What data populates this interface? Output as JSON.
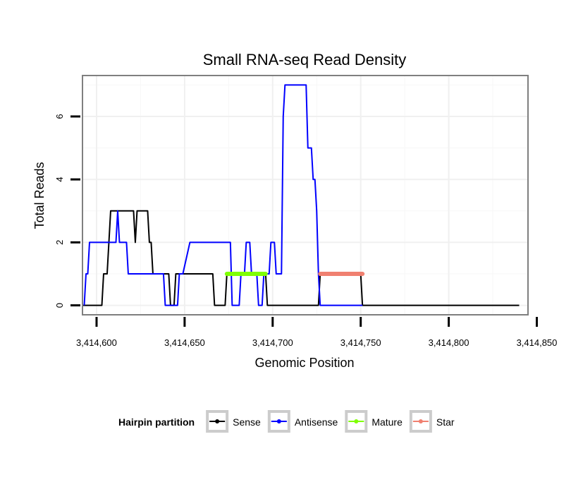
{
  "chart_data": {
    "type": "line",
    "title": "Small RNA-seq Read Density",
    "xlabel": "Genomic Position",
    "ylabel": "Total Reads",
    "xlim": [
      3414592,
      3414845
    ],
    "ylim": [
      -0.3,
      7.3
    ],
    "x_ticks": [
      {
        "value": 3414600,
        "label": "3,414,600"
      },
      {
        "value": 3414650,
        "label": "3,414,650"
      },
      {
        "value": 3414700,
        "label": "3,414,700"
      },
      {
        "value": 3414750,
        "label": "3,414,750"
      },
      {
        "value": 3414800,
        "label": "3,414,800"
      },
      {
        "value": 3414850,
        "label": "3,414,850"
      }
    ],
    "y_ticks": [
      {
        "value": 0,
        "label": "0"
      },
      {
        "value": 2,
        "label": "2"
      },
      {
        "value": 4,
        "label": "4"
      },
      {
        "value": 6,
        "label": "6"
      }
    ],
    "grid": true,
    "legend_position": "bottom",
    "legend_title": "Hairpin partition",
    "series": [
      {
        "name": "Sense",
        "color": "#000000",
        "points": [
          [
            3414592,
            0
          ],
          [
            3414603,
            0
          ],
          [
            3414604,
            1
          ],
          [
            3414606,
            1
          ],
          [
            3414608,
            3
          ],
          [
            3414615,
            3
          ],
          [
            3414621,
            3
          ],
          [
            3414622,
            2
          ],
          [
            3414623,
            3
          ],
          [
            3414629,
            3
          ],
          [
            3414630,
            2
          ],
          [
            3414631,
            2
          ],
          [
            3414632,
            1
          ],
          [
            3414641,
            1
          ],
          [
            3414642,
            0
          ],
          [
            3414644,
            0
          ],
          [
            3414645,
            1
          ],
          [
            3414650,
            1
          ],
          [
            3414666,
            1
          ],
          [
            3414667,
            0
          ],
          [
            3414673,
            0
          ],
          [
            3414674,
            1
          ],
          [
            3414690,
            1
          ],
          [
            3414696,
            1
          ],
          [
            3414697,
            0
          ],
          [
            3414726,
            0
          ],
          [
            3414727,
            1
          ],
          [
            3414750,
            1
          ],
          [
            3414751,
            0
          ],
          [
            3414840,
            0
          ]
        ]
      },
      {
        "name": "Antisense",
        "color": "#0000ff",
        "points": [
          [
            3414593,
            0
          ],
          [
            3414594,
            1
          ],
          [
            3414595,
            1
          ],
          [
            3414596,
            2
          ],
          [
            3414611,
            2
          ],
          [
            3414612,
            3
          ],
          [
            3414613,
            2
          ],
          [
            3414617,
            2
          ],
          [
            3414618,
            1
          ],
          [
            3414631,
            1
          ],
          [
            3414638,
            1
          ],
          [
            3414639,
            0
          ],
          [
            3414646,
            0
          ],
          [
            3414647,
            1
          ],
          [
            3414649,
            1
          ],
          [
            3414653,
            2
          ],
          [
            3414676,
            2
          ],
          [
            3414677,
            0
          ],
          [
            3414681,
            0
          ],
          [
            3414682,
            1
          ],
          [
            3414684,
            1
          ],
          [
            3414685,
            2
          ],
          [
            3414687,
            2
          ],
          [
            3414688,
            1
          ],
          [
            3414691,
            1
          ],
          [
            3414692,
            0
          ],
          [
            3414694,
            0
          ],
          [
            3414695,
            1
          ],
          [
            3414698,
            1
          ],
          [
            3414699,
            2
          ],
          [
            3414701,
            2
          ],
          [
            3414702,
            1
          ],
          [
            3414705,
            1
          ],
          [
            3414706,
            6
          ],
          [
            3414707,
            7
          ],
          [
            3414719,
            7
          ],
          [
            3414720,
            5
          ],
          [
            3414722,
            5
          ],
          [
            3414723,
            4
          ],
          [
            3414724,
            4
          ],
          [
            3414725,
            3
          ],
          [
            3414726,
            1
          ],
          [
            3414727,
            0
          ],
          [
            3414751,
            0
          ]
        ]
      },
      {
        "name": "Mature",
        "color": "#7fff00",
        "points": [
          [
            3414674,
            1
          ],
          [
            3414696,
            1
          ]
        ]
      },
      {
        "name": "Star",
        "color": "#f08070",
        "points": [
          [
            3414727,
            1
          ],
          [
            3414751,
            1
          ]
        ]
      }
    ]
  }
}
